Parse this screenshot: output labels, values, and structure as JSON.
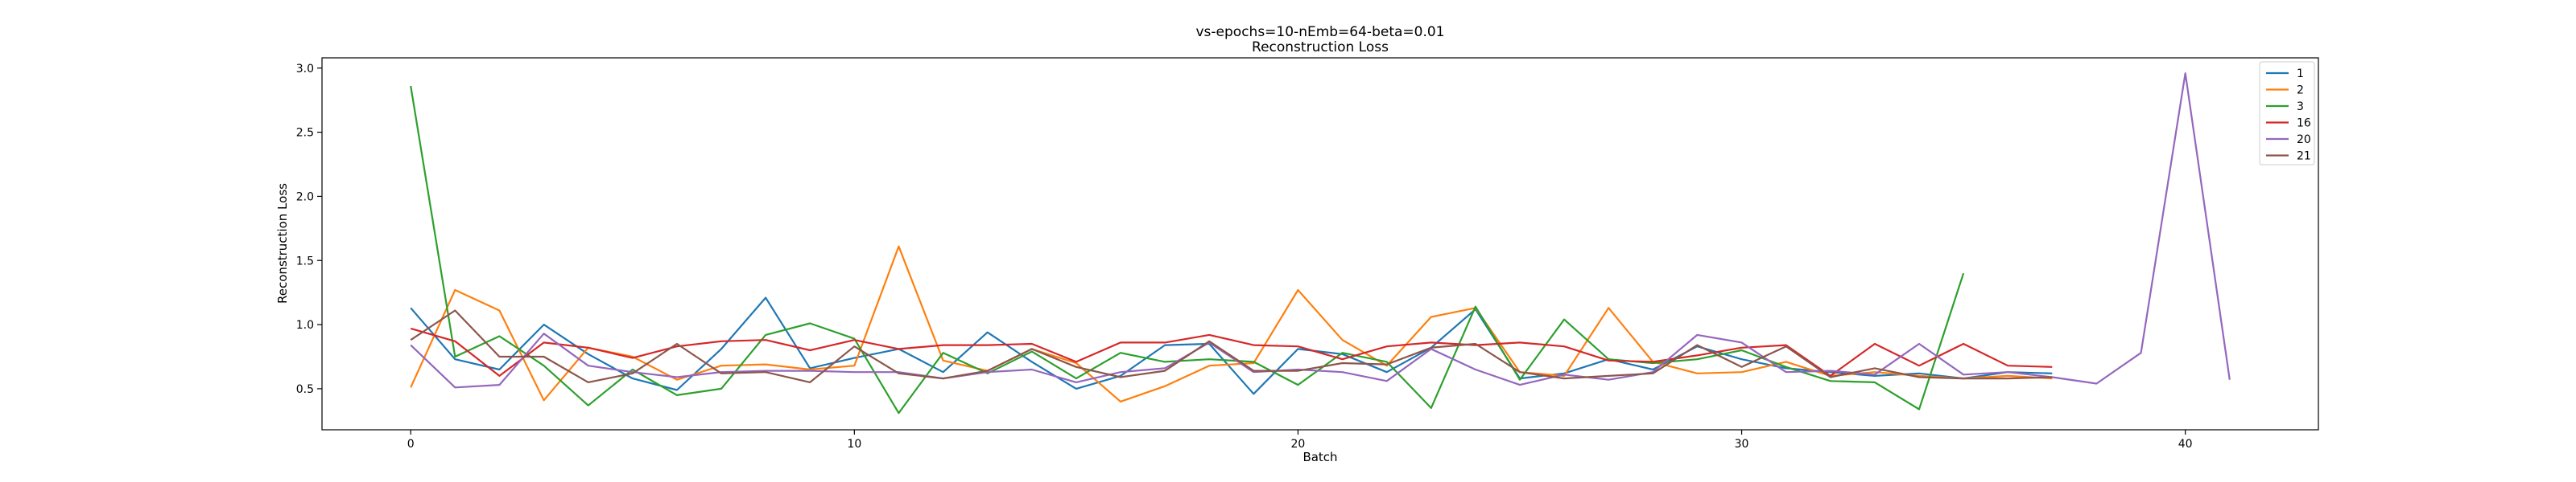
{
  "chart_data": {
    "type": "line",
    "title": "vs-epochs=10-nEmb=64-beta=0.01",
    "subtitle": "Reconstruction Loss",
    "xlabel": "Batch",
    "ylabel": "Reconstruction Loss",
    "xlim": [
      -2,
      43
    ],
    "ylim": [
      0.18,
      3.08
    ],
    "xticks": [
      0,
      10,
      20,
      30,
      40
    ],
    "yticks": [
      0.5,
      1.0,
      1.5,
      2.0,
      2.5,
      3.0
    ],
    "ytick_labels": [
      "0.5",
      "1.0",
      "1.5",
      "2.0",
      "2.5",
      "3.0"
    ],
    "legend_position": "top-right",
    "grid": false,
    "series": [
      {
        "name": "1",
        "color": "#1f77b4",
        "values": [
          1.13,
          0.73,
          0.65,
          1.0,
          0.77,
          0.58,
          0.49,
          0.81,
          1.21,
          0.66,
          0.74,
          0.81,
          0.63,
          0.94,
          0.71,
          0.5,
          0.6,
          0.84,
          0.85,
          0.46,
          0.81,
          0.77,
          0.63,
          0.82,
          1.12,
          0.58,
          0.62,
          0.73,
          0.65,
          0.83,
          0.73,
          0.66,
          0.63,
          0.6,
          0.62,
          0.58,
          0.63,
          0.62
        ]
      },
      {
        "name": "2",
        "color": "#ff7f0e",
        "values": [
          0.51,
          1.27,
          1.11,
          0.41,
          0.82,
          0.75,
          0.57,
          0.68,
          0.69,
          0.65,
          0.68,
          1.61,
          0.72,
          0.64,
          0.81,
          0.7,
          0.4,
          0.52,
          0.68,
          0.7,
          1.27,
          0.88,
          0.68,
          1.06,
          1.13,
          0.63,
          0.6,
          1.13,
          0.71,
          0.62,
          0.63,
          0.71,
          0.6,
          0.63,
          0.6,
          0.58,
          0.6,
          0.58
        ]
      },
      {
        "name": "3",
        "color": "#2ca02c",
        "values": [
          2.86,
          0.75,
          0.91,
          0.68,
          0.37,
          0.65,
          0.45,
          0.5,
          0.92,
          1.01,
          0.89,
          0.31,
          0.78,
          0.62,
          0.79,
          0.58,
          0.78,
          0.71,
          0.73,
          0.71,
          0.53,
          0.78,
          0.71,
          0.35,
          1.14,
          0.57,
          1.04,
          0.73,
          0.7,
          0.73,
          0.8,
          0.67,
          0.56,
          0.55,
          0.34,
          1.4
        ]
      },
      {
        "name": "16",
        "color": "#d62728",
        "values": [
          0.97,
          0.87,
          0.6,
          0.86,
          0.82,
          0.74,
          0.83,
          0.87,
          0.88,
          0.8,
          0.88,
          0.81,
          0.84,
          0.84,
          0.85,
          0.71,
          0.86,
          0.86,
          0.92,
          0.84,
          0.83,
          0.73,
          0.83,
          0.86,
          0.84,
          0.86,
          0.83,
          0.72,
          0.71,
          0.76,
          0.82,
          0.84,
          0.6,
          0.85,
          0.68,
          0.85,
          0.68,
          0.67
        ]
      },
      {
        "name": "20",
        "color": "#9467bd",
        "values": [
          0.84,
          0.51,
          0.53,
          0.93,
          0.68,
          0.63,
          0.59,
          0.63,
          0.64,
          0.64,
          0.63,
          0.63,
          0.58,
          0.63,
          0.65,
          0.55,
          0.63,
          0.66,
          0.86,
          0.63,
          0.65,
          0.63,
          0.56,
          0.81,
          0.65,
          0.53,
          0.61,
          0.57,
          0.63,
          0.92,
          0.86,
          0.63,
          0.64,
          0.61,
          0.85,
          0.61,
          0.63,
          0.59,
          0.54,
          0.78,
          2.96,
          0.57
        ]
      },
      {
        "name": "21",
        "color": "#8c564b",
        "values": [
          0.88,
          1.11,
          0.75,
          0.75,
          0.55,
          0.62,
          0.85,
          0.62,
          0.63,
          0.55,
          0.83,
          0.62,
          0.58,
          0.64,
          0.81,
          0.67,
          0.59,
          0.64,
          0.87,
          0.64,
          0.64,
          0.7,
          0.69,
          0.82,
          0.85,
          0.63,
          0.58,
          0.6,
          0.62,
          0.84,
          0.67,
          0.83,
          0.59,
          0.66,
          0.59,
          0.58,
          0.58,
          0.59
        ]
      }
    ]
  }
}
